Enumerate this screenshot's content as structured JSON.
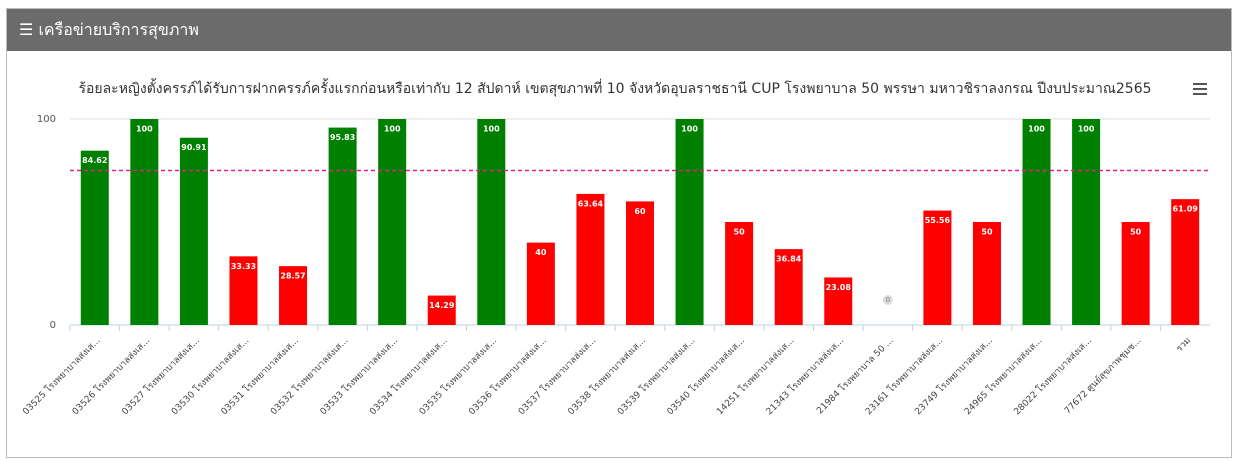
{
  "header": {
    "title": "เครือข่ายบริการสุขภาพ"
  },
  "chart_data": {
    "type": "bar",
    "title": "ร้อยละหญิงตั้งครรภ์ได้รับการฝากครรภ์ครั้งแรกก่อนหรือเท่ากับ 12 สัปดาห์ เขตสุขภาพที่ 10 จังหวัดอุบลราชธานี CUP โรงพยาบาล 50 พรรษา มหาวชิราลงกรณ ปีงบประมาณ2565",
    "categories": [
      "03525 โรงพยาบาลส่งเส...",
      "03526 โรงพยาบาลส่งเส...",
      "03527 โรงพยาบาลส่งเส...",
      "03530 โรงพยาบาลส่งเส...",
      "03531 โรงพยาบาลส่งเส...",
      "03532 โรงพยาบาลส่งเส...",
      "03533 โรงพยาบาลส่งเส...",
      "03534 โรงพยาบาลส่งเส...",
      "03535 โรงพยาบาลส่งเส...",
      "03536 โรงพยาบาลส่งเส...",
      "03537 โรงพยาบาลส่งเส...",
      "03538 โรงพยาบาลส่งเส...",
      "03539 โรงพยาบาลส่งเส...",
      "03540 โรงพยาบาลส่งเส...",
      "14251 โรงพยาบาลส่งเส...",
      "21343 โรงพยาบาลส่งเส...",
      "21984 โรงพยาบาล 50 ...",
      "23161 โรงพยาบาลส่งเส...",
      "23749 โรงพยาบาลส่งเส...",
      "24965 โรงพยาบาลส่งเส...",
      "28022 โรงพยาบาลส่งเส...",
      "77672 ศูนย์สุขภาพชุมช...",
      "รวม"
    ],
    "values": [
      84.62,
      100,
      90.91,
      33.33,
      28.57,
      95.83,
      100,
      14.29,
      100,
      40,
      63.64,
      60,
      100,
      50,
      36.84,
      23.08,
      0,
      55.56,
      50,
      100,
      100,
      50,
      61.09
    ],
    "colors": [
      "#008000",
      "#008000",
      "#008000",
      "#ff0000",
      "#ff0000",
      "#008000",
      "#008000",
      "#ff0000",
      "#008000",
      "#ff0000",
      "#ff0000",
      "#ff0000",
      "#008000",
      "#ff0000",
      "#ff0000",
      "#ff0000",
      "#ff0000",
      "#ff0000",
      "#ff0000",
      "#008000",
      "#008000",
      "#ff0000",
      "#ff0000"
    ],
    "ylim": [
      0,
      100
    ],
    "yticks": [
      0,
      100
    ],
    "grid": true,
    "target": 75,
    "target_color": "#e0218a"
  }
}
